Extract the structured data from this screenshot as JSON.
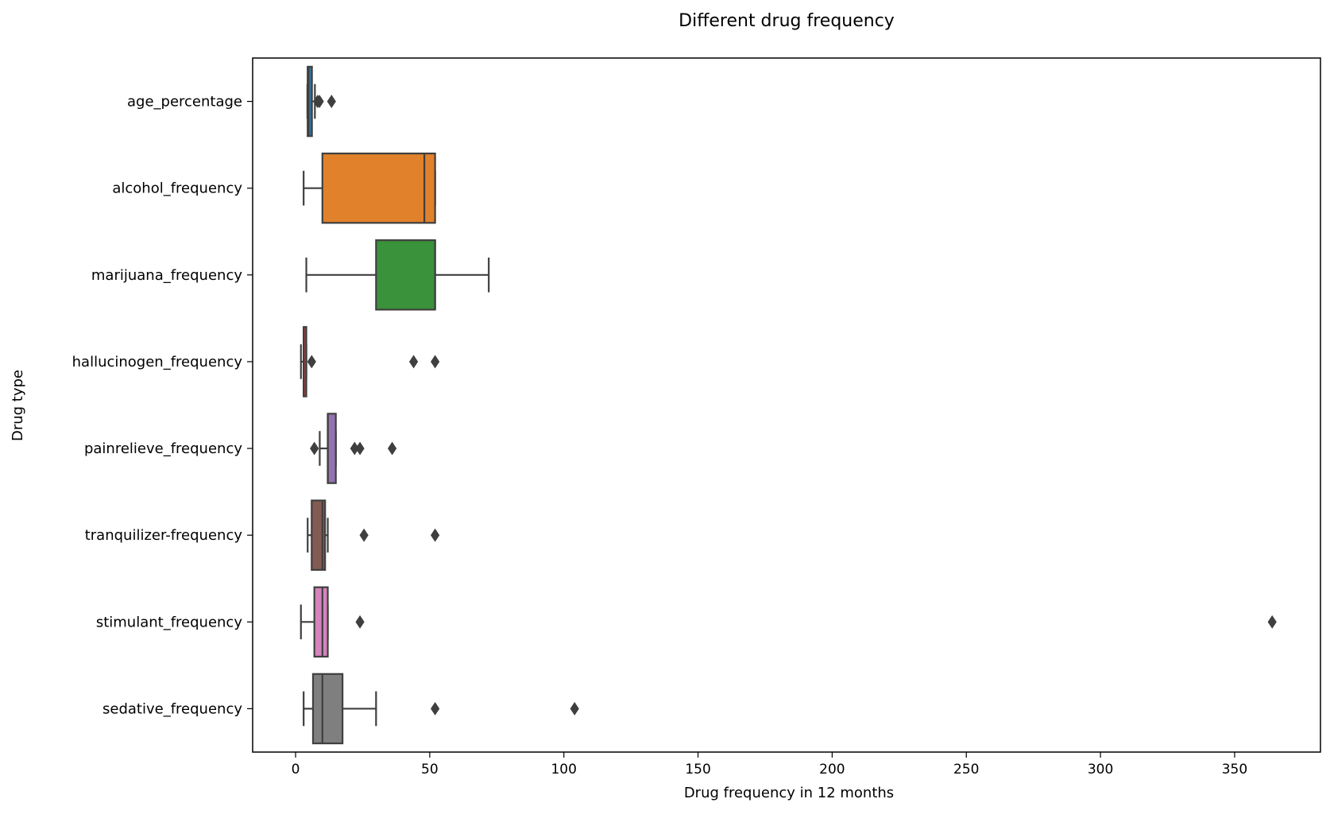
{
  "chart_data": {
    "type": "box",
    "orientation": "horizontal",
    "title": "Different drug frequency",
    "xlabel": "Drug frequency in 12 months",
    "ylabel": "Drug type",
    "xlim": [
      -16,
      382
    ],
    "xticks": [
      0,
      50,
      100,
      150,
      200,
      250,
      300,
      350
    ],
    "grid": false,
    "categories": [
      "age_percentage",
      "alcohol_frequency",
      "marijuana_frequency",
      "hallucinogen_frequency",
      "painrelieve_frequency",
      "tranquilizer-frequency",
      "stimulant_frequency",
      "sedative_frequency"
    ],
    "boxes": [
      {
        "name": "age_percentage",
        "color": "#3274a1",
        "whislo": 4.4,
        "q1": 4.5,
        "median": 4.8,
        "q3": 6.1,
        "whishi": 7.2,
        "fliers": [
          8.2,
          8.9,
          13.4
        ]
      },
      {
        "name": "alcohol_frequency",
        "color": "#e1812c",
        "whislo": 3.0,
        "q1": 10.0,
        "median": 48.0,
        "q3": 52.0,
        "whishi": 52.0,
        "fliers": []
      },
      {
        "name": "marijuana_frequency",
        "color": "#3a923a",
        "whislo": 4.0,
        "q1": 30.0,
        "median": 52.0,
        "q3": 52.0,
        "whishi": 72.0,
        "fliers": []
      },
      {
        "name": "hallucinogen_frequency",
        "color": "#c03d3e",
        "whislo": 2.0,
        "q1": 3.0,
        "median": 3.0,
        "q3": 4.0,
        "whishi": 4.0,
        "fliers": [
          6.0,
          44.0,
          52.0
        ]
      },
      {
        "name": "painrelieve_frequency",
        "color": "#9372b2",
        "whislo": 9.0,
        "q1": 12.0,
        "median": 12.0,
        "q3": 15.0,
        "whishi": 15.0,
        "fliers": [
          7.0,
          22.0,
          24.0,
          36.0
        ]
      },
      {
        "name": "tranquilizer-frequency",
        "color": "#845b53",
        "whislo": 4.5,
        "q1": 6.0,
        "median": 10.0,
        "q3": 11.0,
        "whishi": 12.0,
        "fliers": [
          25.5,
          52.0
        ]
      },
      {
        "name": "stimulant_frequency",
        "color": "#d684bd",
        "whislo": 2.0,
        "q1": 7.0,
        "median": 10.0,
        "q3": 12.0,
        "whishi": 12.0,
        "fliers": [
          24.0,
          364.0
        ]
      },
      {
        "name": "sedative_frequency",
        "color": "#7f7f7f",
        "whislo": 3.0,
        "q1": 6.5,
        "median": 10.0,
        "q3": 17.5,
        "whishi": 30.0,
        "fliers": [
          52.0,
          104.0
        ]
      }
    ]
  }
}
